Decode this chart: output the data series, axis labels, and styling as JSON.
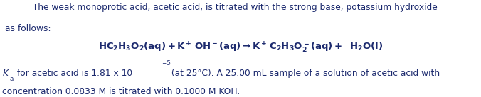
{
  "background_color": "#ffffff",
  "text_color": "#1c2a6e",
  "fig_width": 6.76,
  "fig_height": 1.37,
  "dpi": 100,
  "line1": "          The weak monoprotic acid, acetic acid, is titrated with the strong base, potassium hydroxide",
  "line2": "as follows:",
  "line5": "concentration 0.0833 M is titrated with 0.1000 M KOH.",
  "fontsize": 8.8,
  "eq_fontsize": 9.5
}
